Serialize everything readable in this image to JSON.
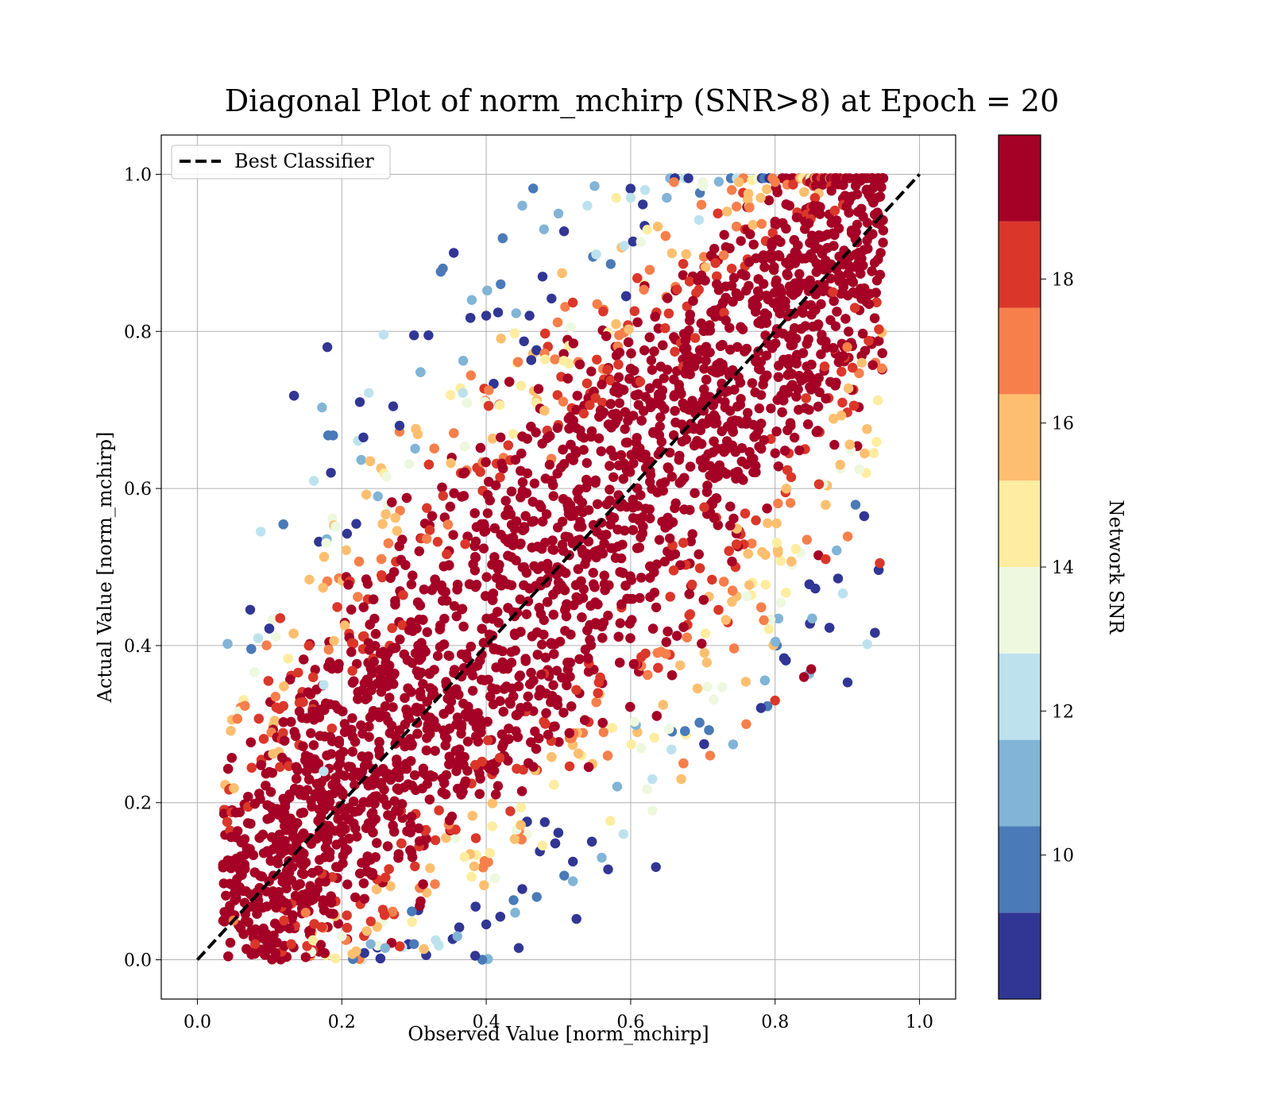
{
  "chart_data": {
    "type": "scatter",
    "title": "Diagonal Plot of norm_mchirp (SNR>8) at Epoch = 20",
    "xlabel": "Observed Value [norm_mchirp]",
    "ylabel": "Actual Value [norm_mchirp]",
    "xlim": [
      -0.05,
      1.05
    ],
    "ylim": [
      -0.05,
      1.05
    ],
    "x_ticks": [
      "0.0",
      "0.2",
      "0.4",
      "0.6",
      "0.8",
      "1.0"
    ],
    "y_ticks": [
      "0.0",
      "0.2",
      "0.4",
      "0.6",
      "0.8",
      "1.0"
    ],
    "grid": true,
    "legend": {
      "placement": "top-left",
      "entries": [
        {
          "label": "Best Classifier",
          "style": "black dashed line"
        }
      ]
    },
    "reference_line": {
      "label": "Best Classifier",
      "x": [
        0.0,
        1.0
      ],
      "y": [
        0.0,
        1.0
      ],
      "color": "#000000",
      "dash": true
    },
    "colorbar": {
      "label": "Network SNR",
      "min": 8.0,
      "max": 20.0,
      "ticks": [
        10,
        12,
        14,
        16,
        18
      ],
      "tick_labels": [
        "10",
        "12",
        "14",
        "16",
        "18"
      ],
      "bins": [
        {
          "from": 8.0,
          "to": 9.2,
          "color": "#313695"
        },
        {
          "from": 9.2,
          "to": 10.4,
          "color": "#4a7ab7"
        },
        {
          "from": 10.4,
          "to": 11.6,
          "color": "#81b4d6"
        },
        {
          "from": 11.6,
          "to": 12.8,
          "color": "#bde2ee"
        },
        {
          "from": 12.8,
          "to": 14.0,
          "color": "#edf8df"
        },
        {
          "from": 14.0,
          "to": 15.2,
          "color": "#feeda0"
        },
        {
          "from": 15.2,
          "to": 16.4,
          "color": "#fdbf6f"
        },
        {
          "from": 16.4,
          "to": 17.6,
          "color": "#f67f4b"
        },
        {
          "from": 17.6,
          "to": 18.8,
          "color": "#da372a"
        },
        {
          "from": 18.8,
          "to": 20.0,
          "color": "#a50026"
        }
      ]
    },
    "series": [
      {
        "color_by": "Network SNR",
        "x": [
          0.18,
          0.185,
          0.225,
          0.23,
          0.22,
          0.635,
          0.525,
          0.465,
          0.46,
          0.445,
          0.45,
          0.63,
          0.52,
          0.85,
          0.86,
          0.87,
          0.945,
          0.175,
          0.175,
          0.25,
          0.28,
          0.3,
          0.32,
          0.34,
          0.355,
          0.45,
          0.55,
          0.6,
          0.65,
          0.7,
          0.75,
          0.8,
          0.88,
          0.9,
          0.92,
          0.38,
          0.4,
          0.42,
          0.48,
          0.5,
          0.54,
          0.58,
          0.62,
          0.66,
          0.7,
          0.74,
          0.78,
          0.82,
          0.12,
          0.15,
          0.1,
          0.08,
          0.06,
          0.05,
          0.09,
          0.13,
          0.16,
          0.2,
          0.24,
          0.26,
          0.3,
          0.33,
          0.36,
          0.4,
          0.44,
          0.47,
          0.52,
          0.56,
          0.59,
          0.63,
          0.67,
          0.71,
          0.76,
          0.8,
          0.84
        ],
        "y": [
          0.78,
          0.62,
          0.71,
          0.665,
          0.555,
          0.118,
          0.052,
          0.982,
          0.82,
          0.015,
          0.09,
          0.23,
          0.125,
          0.37,
          0.515,
          0.51,
          0.505,
          0.35,
          0.24,
          0.59,
          0.68,
          0.795,
          0.795,
          0.88,
          0.9,
          0.96,
          0.985,
          0.97,
          0.97,
          0.99,
          0.99,
          0.99,
          0.85,
          0.78,
          0.76,
          0.84,
          0.82,
          0.86,
          0.93,
          0.95,
          0.96,
          0.97,
          0.98,
          0.99,
          0.985,
          0.98,
          0.97,
          0.96,
          0.05,
          0.06,
          0.03,
          0.02,
          0.04,
          0.05,
          0.01,
          0.02,
          0.025,
          0.03,
          0.02,
          0.015,
          0.02,
          0.025,
          0.03,
          0.045,
          0.06,
          0.08,
          0.1,
          0.13,
          0.16,
          0.19,
          0.23,
          0.26,
          0.3,
          0.33,
          0.36
        ],
        "snr": [
          8.5,
          8.5,
          8.5,
          8.5,
          8.5,
          8.5,
          8.5,
          9.5,
          8.5,
          8.5,
          8.5,
          12.5,
          8.5,
          19.5,
          19.5,
          18.5,
          18.5,
          12.5,
          12.5,
          10.5,
          8.5,
          8.5,
          8.5,
          9.5,
          8.5,
          11.5,
          10.5,
          12.5,
          11.5,
          13.5,
          15.5,
          17.5,
          18.5,
          16.5,
          15.5,
          10.5,
          8.5,
          9.5,
          11.5,
          10.5,
          12.5,
          14.5,
          12.5,
          16.5,
          13.5,
          17.5,
          15.5,
          19.5,
          18.5,
          16.5,
          19.5,
          18.5,
          19.5,
          17.5,
          19.5,
          18.5,
          14.5,
          13.5,
          11.5,
          10.5,
          9.5,
          12.5,
          11.5,
          8.5,
          10.5,
          9.5,
          11.5,
          10.5,
          12.5,
          13.5,
          15.5,
          16.5,
          17.5,
          18.5,
          19.5
        ]
      }
    ]
  }
}
